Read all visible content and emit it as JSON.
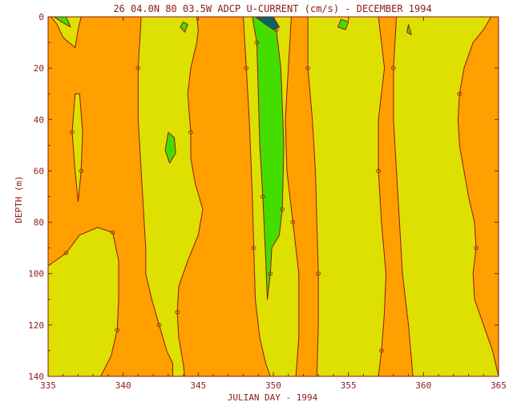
{
  "chart_data": {
    "type": "contour",
    "title": "26 04.0N 80 03.5W ADCP U-CURRENT (cm/s) - DECEMBER 1994",
    "xlabel": "JULIAN DAY - 1994",
    "ylabel": "DEPTH (m)",
    "xlim": [
      335,
      365
    ],
    "ylim": [
      0,
      140
    ],
    "y_inverted": true,
    "xticks": [
      335,
      340,
      345,
      350,
      355,
      360,
      365
    ],
    "yticks": [
      0,
      20,
      40,
      60,
      80,
      100,
      120,
      140
    ],
    "contour_label": "0",
    "colors": {
      "background_level": "#ff9f00",
      "low_level": "#dde000",
      "mid_level": "#44dd00",
      "high_level": "#006666",
      "contour_line": "#8b1a1a",
      "text": "#8b1a1a"
    },
    "regions": [
      {
        "level": "low",
        "points": [
          [
            335.2,
            0
          ],
          [
            335.6,
            3
          ],
          [
            336.0,
            8
          ],
          [
            336.8,
            12
          ],
          [
            337.0,
            5
          ],
          [
            337.2,
            0
          ]
        ]
      },
      {
        "level": "low",
        "points": [
          [
            336.8,
            30
          ],
          [
            336.6,
            45
          ],
          [
            336.8,
            60
          ],
          [
            337.0,
            72
          ],
          [
            337.2,
            60
          ],
          [
            337.3,
            45
          ],
          [
            337.1,
            30
          ]
        ]
      },
      {
        "level": "low",
        "points": [
          [
            335,
            97
          ],
          [
            336.2,
            92
          ],
          [
            337.1,
            85
          ],
          [
            338.3,
            82
          ],
          [
            339.3,
            84
          ],
          [
            339.7,
            95
          ],
          [
            339.7,
            110
          ],
          [
            339.6,
            122
          ],
          [
            339.2,
            132
          ],
          [
            338.5,
            140
          ],
          [
            335,
            140
          ]
        ]
      },
      {
        "level": "low",
        "points": [
          [
            341.2,
            0
          ],
          [
            341.0,
            20
          ],
          [
            341.0,
            40
          ],
          [
            341.2,
            60
          ],
          [
            341.4,
            80
          ],
          [
            341.5,
            90
          ],
          [
            341.5,
            100
          ],
          [
            341.9,
            110
          ],
          [
            342.4,
            120
          ],
          [
            342.9,
            130
          ],
          [
            343.3,
            135
          ],
          [
            343.3,
            140
          ],
          [
            344.1,
            140
          ],
          [
            344.0,
            135
          ],
          [
            343.7,
            125
          ],
          [
            343.6,
            115
          ],
          [
            343.7,
            105
          ],
          [
            344.3,
            95
          ],
          [
            345.0,
            85
          ],
          [
            345.3,
            75
          ],
          [
            344.8,
            65
          ],
          [
            344.5,
            55
          ],
          [
            344.5,
            45
          ],
          [
            344.3,
            30
          ],
          [
            344.5,
            20
          ],
          [
            344.9,
            10
          ],
          [
            345.0,
            5
          ],
          [
            344.9,
            0
          ]
        ]
      },
      {
        "level": "low",
        "points": [
          [
            348.0,
            0
          ],
          [
            348.2,
            20
          ],
          [
            348.4,
            40
          ],
          [
            348.5,
            55
          ],
          [
            348.6,
            70
          ],
          [
            348.7,
            90
          ],
          [
            348.8,
            110
          ],
          [
            349.1,
            125
          ],
          [
            349.5,
            135
          ],
          [
            349.8,
            140
          ],
          [
            351.5,
            140
          ],
          [
            351.7,
            125
          ],
          [
            351.7,
            100
          ],
          [
            351.3,
            80
          ],
          [
            350.9,
            60
          ],
          [
            350.8,
            40
          ],
          [
            351.0,
            20
          ],
          [
            351.2,
            0
          ]
        ]
      },
      {
        "level": "low",
        "points": [
          [
            352.3,
            0
          ],
          [
            352.3,
            20
          ],
          [
            352.6,
            40
          ],
          [
            352.8,
            60
          ],
          [
            352.9,
            80
          ],
          [
            353.0,
            100
          ],
          [
            353.0,
            120
          ],
          [
            352.9,
            140
          ],
          [
            357.0,
            140
          ],
          [
            357.2,
            130
          ],
          [
            357.4,
            115
          ],
          [
            357.5,
            100
          ],
          [
            357.2,
            80
          ],
          [
            357.0,
            60
          ],
          [
            357.0,
            40
          ],
          [
            357.4,
            20
          ],
          [
            357.2,
            10
          ],
          [
            357.0,
            0
          ]
        ]
      },
      {
        "level": "low",
        "points": [
          [
            358.2,
            0
          ],
          [
            358.0,
            20
          ],
          [
            358.0,
            40
          ],
          [
            358.2,
            60
          ],
          [
            358.4,
            80
          ],
          [
            358.6,
            100
          ],
          [
            359.0,
            120
          ],
          [
            359.3,
            140
          ],
          [
            365,
            140
          ],
          [
            364.6,
            130
          ],
          [
            364.0,
            120
          ],
          [
            363.4,
            110
          ],
          [
            363.3,
            100
          ],
          [
            363.5,
            90
          ],
          [
            363.4,
            80
          ],
          [
            363.0,
            70
          ],
          [
            362.7,
            60
          ],
          [
            362.4,
            50
          ],
          [
            362.3,
            40
          ],
          [
            362.4,
            30
          ],
          [
            362.7,
            20
          ],
          [
            363.3,
            10
          ],
          [
            364.0,
            5
          ],
          [
            364.5,
            0
          ]
        ]
      },
      {
        "level": "mid",
        "points": [
          [
            335.4,
            0
          ],
          [
            335.9,
            2
          ],
          [
            336.5,
            4
          ],
          [
            336.2,
            0
          ]
        ]
      },
      {
        "level": "mid",
        "points": [
          [
            343.0,
            45
          ],
          [
            342.8,
            52
          ],
          [
            343.1,
            57
          ],
          [
            343.5,
            53
          ],
          [
            343.4,
            47
          ]
        ]
      },
      {
        "level": "mid",
        "points": [
          [
            348.6,
            0
          ],
          [
            348.9,
            10
          ],
          [
            349.0,
            30
          ],
          [
            349.1,
            50
          ],
          [
            349.3,
            70
          ],
          [
            349.5,
            95
          ],
          [
            349.6,
            110
          ],
          [
            349.8,
            100
          ],
          [
            349.9,
            90
          ],
          [
            350.4,
            85
          ],
          [
            350.6,
            75
          ],
          [
            350.7,
            50
          ],
          [
            350.5,
            20
          ],
          [
            350.2,
            5
          ],
          [
            350.0,
            0
          ]
        ]
      },
      {
        "level": "mid",
        "points": [
          [
            344.0,
            2
          ],
          [
            343.8,
            4
          ],
          [
            344.1,
            6
          ],
          [
            344.3,
            3
          ]
        ]
      },
      {
        "level": "mid",
        "points": [
          [
            354.5,
            1
          ],
          [
            354.3,
            4
          ],
          [
            354.8,
            5
          ],
          [
            355.0,
            2
          ]
        ]
      },
      {
        "level": "mid",
        "points": [
          [
            359.0,
            3
          ],
          [
            358.9,
            6
          ],
          [
            359.2,
            7
          ]
        ]
      },
      {
        "level": "high",
        "points": [
          [
            348.8,
            0
          ],
          [
            349.5,
            3
          ],
          [
            350.0,
            5
          ],
          [
            350.4,
            4
          ],
          [
            350.0,
            0
          ]
        ]
      }
    ]
  }
}
